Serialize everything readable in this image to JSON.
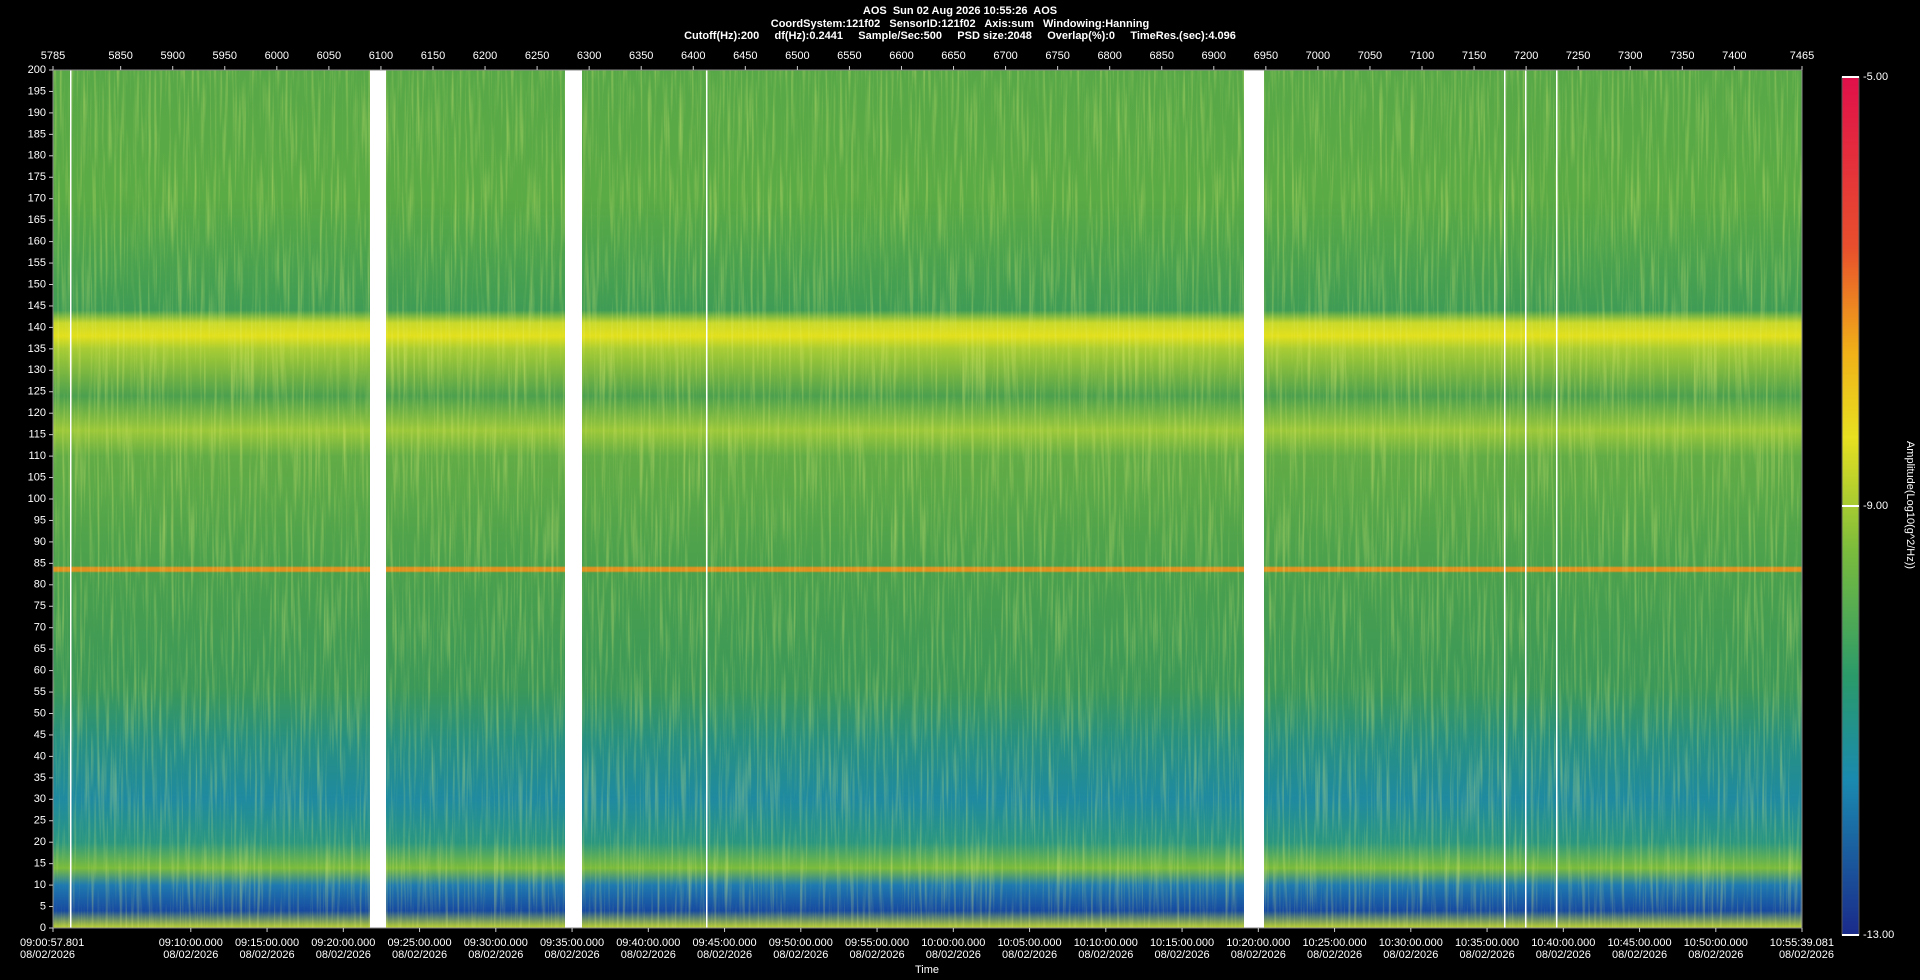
{
  "chart_data": {
    "type": "spectrogram",
    "title": "AOS  Sun 02 Aug 2026 10:55:26  AOS",
    "subtitle": "CoordSystem:121f02   SensorID:121f02   Axis:sum   Windowing:Hanning",
    "subtitle2": "Cutoff(Hz):200     df(Hz):0.2441     Sample/Sec:500     PSD size:2048     Overlap(%):0     TimeRes.(sec):4.096",
    "xlim": [
      5785,
      7465
    ],
    "xticks": [
      5785,
      5850,
      5900,
      5950,
      6000,
      6050,
      6100,
      6150,
      6200,
      6250,
      6300,
      6350,
      6400,
      6450,
      6500,
      6550,
      6600,
      6650,
      6700,
      6750,
      6800,
      6850,
      6900,
      6950,
      7000,
      7050,
      7100,
      7150,
      7200,
      7250,
      7300,
      7350,
      7400,
      7465
    ],
    "ylim": [
      0,
      200
    ],
    "yticks": [
      0,
      5,
      10,
      15,
      20,
      25,
      30,
      35,
      40,
      45,
      50,
      55,
      60,
      65,
      70,
      75,
      80,
      85,
      90,
      95,
      100,
      105,
      110,
      115,
      120,
      125,
      130,
      135,
      140,
      145,
      150,
      155,
      160,
      165,
      170,
      175,
      180,
      185,
      190,
      195,
      200
    ],
    "x2lim": [
      32457.801,
      39339.081
    ],
    "x2ticks": [
      {
        "value": 32457.801,
        "label": "09:00:57.801"
      },
      {
        "value": 33000,
        "label": "09:10:00.000"
      },
      {
        "value": 33300,
        "label": "09:15:00.000"
      },
      {
        "value": 33600,
        "label": "09:20:00.000"
      },
      {
        "value": 33900,
        "label": "09:25:00.000"
      },
      {
        "value": 34200,
        "label": "09:30:00.000"
      },
      {
        "value": 34500,
        "label": "09:35:00.000"
      },
      {
        "value": 34800,
        "label": "09:40:00.000"
      },
      {
        "value": 35100,
        "label": "09:45:00.000"
      },
      {
        "value": 35400,
        "label": "09:50:00.000"
      },
      {
        "value": 35700,
        "label": "09:55:00.000"
      },
      {
        "value": 36000,
        "label": "10:00:00.000"
      },
      {
        "value": 36300,
        "label": "10:05:00.000"
      },
      {
        "value": 36600,
        "label": "10:10:00.000"
      },
      {
        "value": 36900,
        "label": "10:15:00.000"
      },
      {
        "value": 37200,
        "label": "10:20:00.000"
      },
      {
        "value": 37500,
        "label": "10:25:00.000"
      },
      {
        "value": 37800,
        "label": "10:30:00.000"
      },
      {
        "value": 38100,
        "label": "10:35:00.000"
      },
      {
        "value": 38400,
        "label": "10:40:00.000"
      },
      {
        "value": 38700,
        "label": "10:45:00.000"
      },
      {
        "value": 39000,
        "label": "10:50:00.000"
      },
      {
        "value": 39339.081,
        "label": "10:55:39.081"
      }
    ],
    "x2tick_dates": [
      "08/02/2026",
      "08/02/2026",
      "08/02/2026",
      "08/02/2026",
      "08/02/2026",
      "08/02/2026",
      "08/02/2026",
      "08/02/2026",
      "08/02/2026",
      "08/02/2026",
      "08/02/2026",
      "08/02/2026",
      "08/02/2026",
      "08/02/2026",
      "08/02/2026",
      "08/02/2026",
      "08/02/2026",
      "08/02/2026",
      "08/02/2026",
      "08/02/2026",
      "08/02/2026",
      "08/02/2026",
      "08/02/2026"
    ],
    "xlabel": "Time",
    "colorbar_label": "Amplitude(Log10(g^2/Hz))",
    "clim": [
      -13,
      -5
    ],
    "cticks": [
      {
        "value": -5,
        "label": "-5.00"
      },
      {
        "value": -9,
        "label": "-9.00"
      },
      {
        "value": -13,
        "label": "-13.00"
      }
    ]
  }
}
